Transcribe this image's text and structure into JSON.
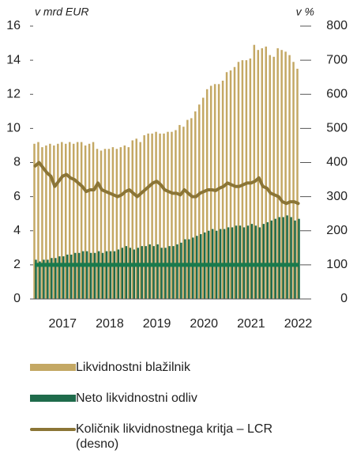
{
  "chart_data": {
    "type": "bar_line",
    "y_label": "v mrd EUR",
    "y2_label": "v %",
    "categories": [
      null,
      null,
      null,
      null,
      null,
      null,
      null,
      "2017",
      null,
      null,
      null,
      null,
      null,
      null,
      null,
      null,
      null,
      null,
      null,
      "2018",
      null,
      null,
      null,
      null,
      null,
      null,
      null,
      null,
      null,
      null,
      null,
      "2019",
      null,
      null,
      null,
      null,
      null,
      null,
      null,
      null,
      null,
      null,
      null,
      "2020",
      null,
      null,
      null,
      null,
      null,
      null,
      null,
      null,
      null,
      null,
      null,
      "2021",
      null,
      null,
      null,
      null,
      null,
      null,
      null,
      null,
      null,
      null,
      null,
      "2022"
    ],
    "series": [
      {
        "name": "Likvidnostni blažilnik",
        "color": "#c4a864",
        "kind": "bar",
        "values": [
          9.1,
          9.2,
          8.9,
          9.0,
          9.1,
          9.0,
          9.1,
          9.2,
          9.1,
          9.2,
          9.1,
          9.2,
          9.2,
          9.0,
          9.1,
          9.2,
          8.8,
          8.7,
          8.8,
          8.8,
          8.9,
          8.8,
          8.9,
          9.0,
          8.9,
          9.3,
          9.4,
          9.2,
          9.6,
          9.7,
          9.7,
          9.8,
          9.7,
          9.7,
          9.8,
          9.8,
          9.9,
          10.2,
          10.1,
          10.5,
          10.6,
          11.0,
          11.4,
          11.8,
          12.3,
          12.5,
          12.6,
          12.6,
          12.8,
          13.3,
          13.4,
          13.6,
          13.9,
          14.0,
          14.0,
          14.1,
          14.9,
          14.6,
          14.7,
          14.8,
          14.3,
          14.2,
          14.7,
          14.6,
          14.5,
          14.3,
          13.9,
          13.5
        ]
      },
      {
        "name": "Neto likvidnostni odliv",
        "color": "#1f6b4b",
        "kind": "bar",
        "values": [
          2.3,
          2.2,
          2.3,
          2.3,
          2.4,
          2.4,
          2.5,
          2.5,
          2.6,
          2.6,
          2.7,
          2.7,
          2.8,
          2.8,
          2.7,
          2.7,
          2.8,
          2.7,
          2.8,
          2.8,
          2.8,
          2.9,
          3.0,
          3.1,
          3.0,
          2.9,
          3.0,
          3.1,
          3.1,
          3.2,
          3.1,
          3.2,
          3.0,
          3.0,
          3.1,
          3.1,
          3.2,
          3.3,
          3.5,
          3.5,
          3.6,
          3.7,
          3.8,
          3.9,
          4.0,
          4.1,
          4.0,
          4.1,
          4.1,
          4.2,
          4.2,
          4.3,
          4.3,
          4.2,
          4.3,
          4.4,
          4.3,
          4.2,
          4.4,
          4.5,
          4.6,
          4.7,
          4.8,
          4.8,
          4.9,
          4.8,
          4.6,
          4.7
        ]
      },
      {
        "name": "Količnik likvidnostnega kritja – LCR (desno)",
        "color": "#8b7536",
        "kind": "line",
        "axis": "y2",
        "values": [
          390,
          400,
          385,
          370,
          360,
          330,
          345,
          360,
          365,
          355,
          350,
          340,
          330,
          315,
          320,
          320,
          340,
          320,
          315,
          310,
          305,
          300,
          305,
          315,
          320,
          310,
          300,
          310,
          320,
          330,
          340,
          345,
          335,
          320,
          315,
          310,
          310,
          305,
          320,
          310,
          300,
          300,
          310,
          315,
          320,
          320,
          318,
          325,
          330,
          340,
          335,
          330,
          330,
          335,
          340,
          340,
          345,
          355,
          330,
          325,
          310,
          305,
          300,
          285,
          280,
          285,
          285,
          280
        ]
      }
    ],
    "reference_line": {
      "value": 100,
      "axis": "y2",
      "color": "#1a7a4c"
    },
    "ylim": [
      0,
      16
    ],
    "yticks": [
      0,
      2,
      4,
      6,
      8,
      10,
      12,
      14,
      16
    ],
    "y2lim": [
      0,
      800
    ],
    "y2ticks": [
      0,
      100,
      200,
      300,
      400,
      500,
      600,
      700,
      800
    ]
  }
}
